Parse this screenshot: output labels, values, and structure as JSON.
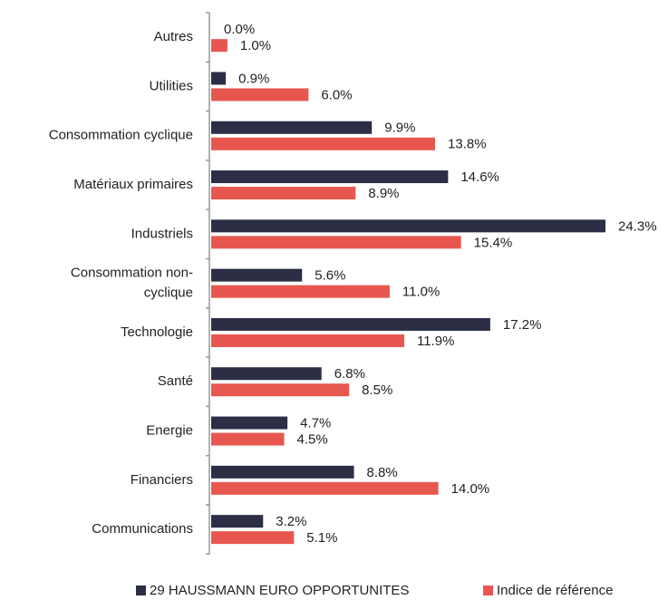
{
  "chart_data": {
    "type": "bar",
    "orientation": "horizontal",
    "categories": [
      "Autres",
      "Utilities",
      "Consommation cyclique",
      "Matériaux primaires",
      "Industriels",
      "Consommation non-cyclique",
      "Technologie",
      "Santé",
      "Energie",
      "Financiers",
      "Communications"
    ],
    "series": [
      {
        "name": "29 HAUSSMANN EURO OPPORTUNITES",
        "color": "#2b2e45",
        "values": [
          0.0,
          0.9,
          9.9,
          14.6,
          24.3,
          5.6,
          17.2,
          6.8,
          4.7,
          8.8,
          3.2
        ],
        "value_labels": [
          "0.0%",
          "0.9%",
          "9.9%",
          "14.6%",
          "24.3%",
          "5.6%",
          "17.2%",
          "6.8%",
          "4.7%",
          "8.8%",
          "3.2%"
        ]
      },
      {
        "name": "Indice de référence",
        "color": "#e8574f",
        "values": [
          1.0,
          6.0,
          13.8,
          8.9,
          15.4,
          11.0,
          11.9,
          8.5,
          4.5,
          14.0,
          5.1
        ],
        "value_labels": [
          "1.0%",
          "6.0%",
          "13.8%",
          "8.9%",
          "15.4%",
          "11.0%",
          "11.9%",
          "8.5%",
          "4.5%",
          "14.0%",
          "5.1%"
        ]
      }
    ],
    "legend": "bottom"
  }
}
